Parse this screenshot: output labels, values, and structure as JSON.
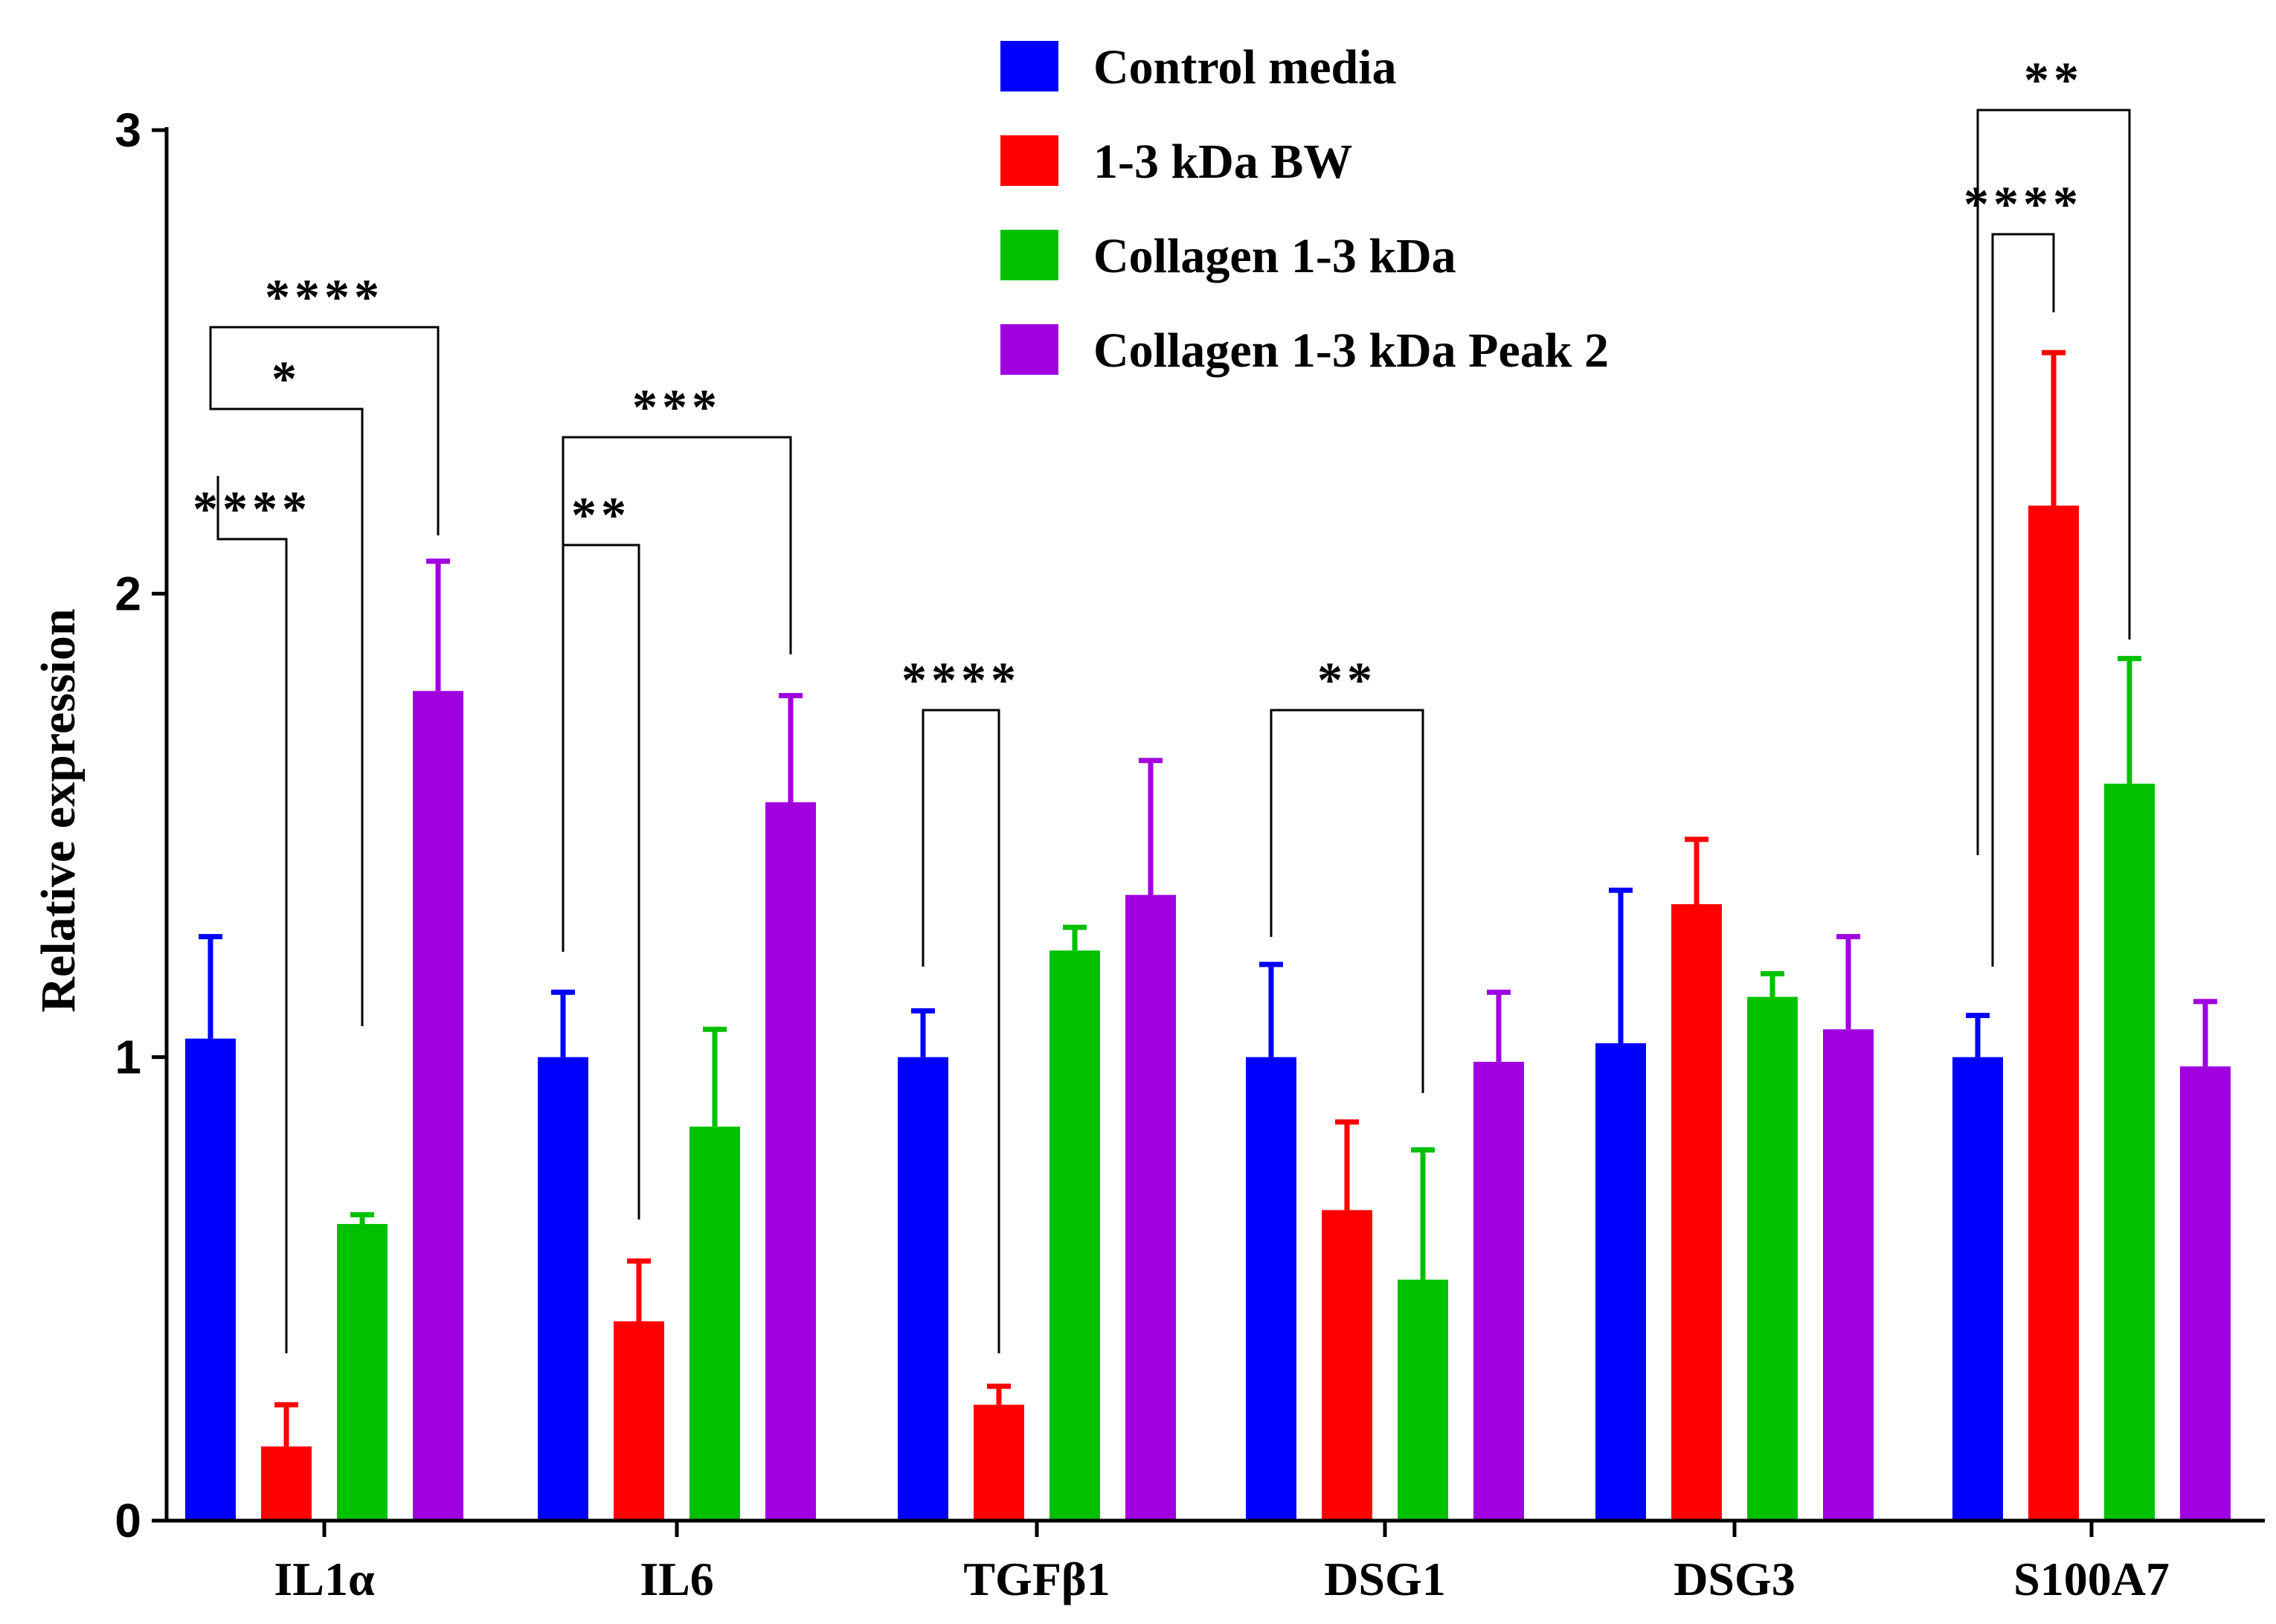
{
  "chart_data": {
    "type": "bar",
    "title": "",
    "xlabel": "",
    "ylabel": "Relative expression",
    "ylim": [
      0,
      3
    ],
    "yticks": [
      "0",
      "1",
      "2",
      "3"
    ],
    "categories": [
      "IL1α",
      "IL6",
      "TGFβ1",
      "DSG1",
      "DSG3",
      "S100A7"
    ],
    "series": [
      {
        "name": "Control media",
        "color": "#0000ff",
        "values": [
          1.04,
          1.0,
          1.0,
          1.0,
          1.03,
          1.0
        ],
        "errors": [
          0.22,
          0.14,
          0.1,
          0.2,
          0.33,
          0.09
        ]
      },
      {
        "name": "1-3 kDa BW",
        "color": "#ff0000",
        "values": [
          0.16,
          0.43,
          0.25,
          0.67,
          1.33,
          2.19
        ],
        "errors": [
          0.09,
          0.13,
          0.04,
          0.19,
          0.14,
          0.33
        ]
      },
      {
        "name": "Collagen 1-3 kDa",
        "color": "#00c000",
        "values": [
          0.64,
          0.85,
          1.23,
          0.52,
          1.13,
          1.59
        ],
        "errors": [
          0.02,
          0.21,
          0.05,
          0.28,
          0.05,
          0.27
        ]
      },
      {
        "name": "Collagen 1-3 kDa Peak 2",
        "color": "#a000e0",
        "values": [
          1.79,
          1.55,
          1.35,
          0.99,
          1.06,
          0.98
        ],
        "errors": [
          0.28,
          0.23,
          0.29,
          0.15,
          0.2,
          0.14
        ]
      }
    ],
    "significance": [
      {
        "category": "IL1α",
        "from_series": 0,
        "to_series": 1,
        "label": "****"
      },
      {
        "category": "IL1α",
        "from_series": 0,
        "to_series": 2,
        "label": "*"
      },
      {
        "category": "IL1α",
        "from_series": 0,
        "to_series": 3,
        "label": "****"
      },
      {
        "category": "IL6",
        "from_series": 0,
        "to_series": 1,
        "label": "**"
      },
      {
        "category": "IL6",
        "from_series": 0,
        "to_series": 3,
        "label": "***"
      },
      {
        "category": "TGFβ1",
        "from_series": 0,
        "to_series": 1,
        "label": "****"
      },
      {
        "category": "DSG1",
        "from_series": 0,
        "to_series": 2,
        "label": "**"
      },
      {
        "category": "S100A7",
        "from_series": 0,
        "to_series": 1,
        "label": "****"
      },
      {
        "category": "S100A7",
        "from_series": 0,
        "to_series": 2,
        "label": "**"
      }
    ],
    "legend_position": "top-right",
    "grid": false
  }
}
